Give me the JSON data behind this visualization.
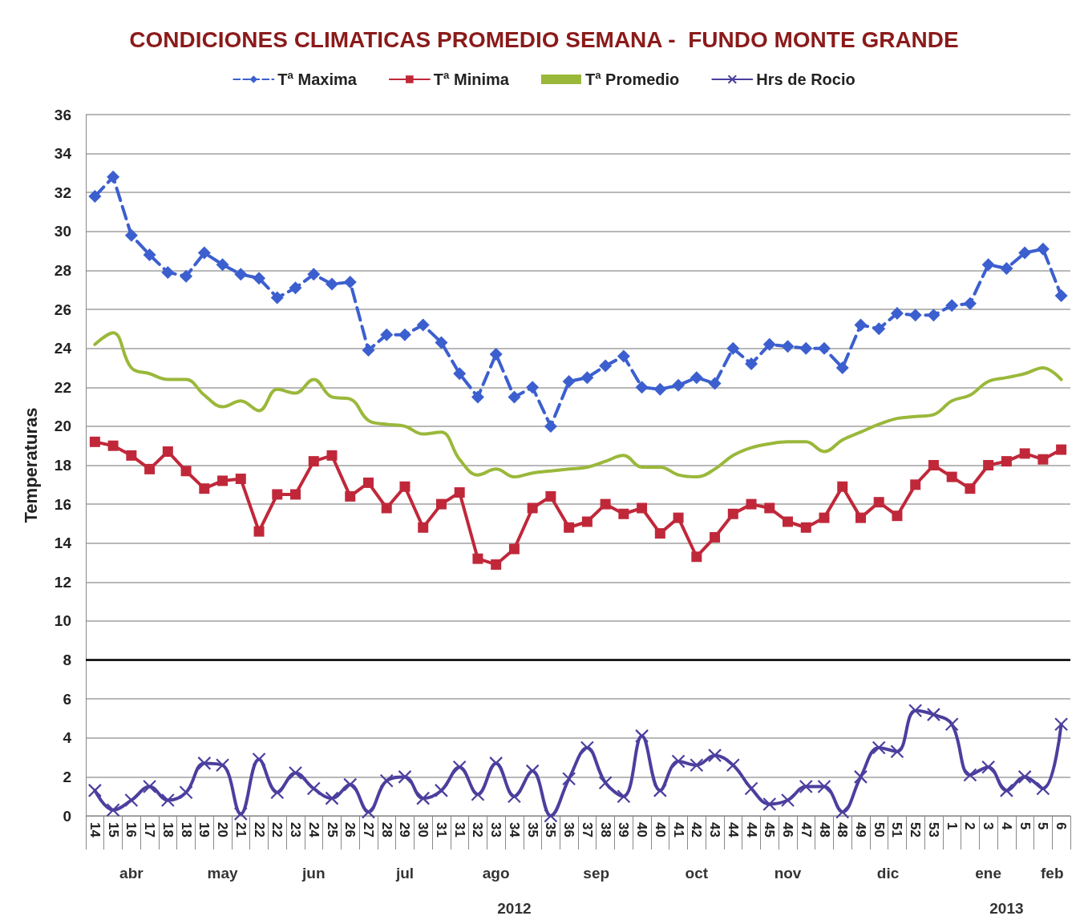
{
  "chart_data": {
    "type": "line",
    "title": "CONDICIONES CLIMATICAS PROMEDIO SEMANA -  FUNDO MONTE GRANDE",
    "ylabel": "Temperaturas",
    "categories": [
      "14",
      "15",
      "16",
      "17",
      "18",
      "18",
      "19",
      "20",
      "21",
      "22",
      "22",
      "23",
      "24",
      "25",
      "26",
      "27",
      "28",
      "29",
      "30",
      "31",
      "31",
      "32",
      "33",
      "34",
      "35",
      "35",
      "36",
      "37",
      "38",
      "39",
      "40",
      "40",
      "41",
      "42",
      "43",
      "44",
      "44",
      "45",
      "46",
      "47",
      "48",
      "48",
      "49",
      "50",
      "51",
      "52",
      "53",
      "1",
      "2",
      "3",
      "4",
      "5",
      "5",
      "6"
    ],
    "series": [
      {
        "name": "Tª Maxima",
        "color": "#3c5fcf",
        "marker": "diamond",
        "line_style": "dashed",
        "values": [
          31.8,
          32.8,
          29.8,
          28.8,
          27.9,
          27.7,
          28.9,
          28.3,
          27.8,
          27.6,
          26.6,
          27.1,
          27.8,
          27.3,
          27.4,
          23.9,
          24.7,
          24.7,
          25.2,
          24.3,
          22.7,
          21.5,
          23.7,
          21.5,
          22.0,
          20.0,
          22.3,
          22.5,
          23.1,
          23.6,
          22.0,
          21.9,
          22.1,
          22.5,
          22.2,
          24.0,
          23.2,
          24.2,
          24.1,
          24.0,
          24.0,
          23.0,
          25.2,
          25.0,
          25.8,
          25.7,
          25.7,
          26.2,
          26.3,
          28.3,
          28.1,
          28.9,
          29.1,
          26.7
        ]
      },
      {
        "name": "Tª Minima",
        "color": "#c0283a",
        "marker": "square",
        "line_style": "solid",
        "values": [
          19.2,
          19.0,
          18.5,
          17.8,
          18.7,
          17.7,
          16.8,
          17.2,
          17.3,
          14.6,
          16.5,
          16.5,
          18.2,
          18.5,
          16.4,
          17.1,
          15.8,
          16.9,
          14.8,
          16.0,
          16.6,
          13.2,
          12.9,
          13.7,
          15.8,
          16.4,
          14.8,
          15.1,
          16.0,
          15.5,
          15.8,
          14.5,
          15.3,
          13.3,
          14.3,
          15.5,
          16.0,
          15.8,
          15.1,
          14.8,
          15.3,
          16.9,
          15.3,
          16.1,
          15.4,
          17.0,
          18.0,
          17.4,
          16.8,
          18.0,
          18.2,
          18.6,
          18.3,
          18.8
        ]
      },
      {
        "name": "Tª Promedio",
        "color": "#9ab83a",
        "marker": "none",
        "line_style": "solid",
        "values": [
          24.2,
          24.8,
          23.0,
          22.7,
          22.4,
          22.4,
          21.6,
          21.0,
          21.3,
          20.8,
          21.9,
          21.7,
          22.4,
          21.5,
          21.4,
          20.3,
          20.1,
          20.0,
          19.6,
          19.7,
          18.3,
          17.5,
          17.8,
          17.4,
          17.6,
          17.7,
          17.8,
          17.9,
          18.2,
          18.5,
          17.9,
          17.9,
          17.5,
          17.4,
          17.8,
          18.5,
          18.9,
          19.1,
          19.2,
          19.2,
          18.7,
          19.3,
          19.7,
          20.1,
          20.4,
          20.5,
          20.6,
          21.3,
          21.6,
          22.3,
          22.5,
          22.7,
          23.0,
          22.4
        ]
      },
      {
        "name": "Hrs de Rocio",
        "color": "#4b3f9e",
        "marker": "cross",
        "line_style": "solid",
        "values": [
          1.3,
          0.3,
          0.8,
          1.5,
          0.8,
          1.2,
          2.7,
          2.6,
          0.1,
          2.9,
          1.2,
          2.2,
          1.4,
          0.9,
          1.6,
          0.2,
          1.8,
          2.0,
          0.9,
          1.3,
          2.5,
          1.1,
          2.7,
          1.0,
          2.3,
          0.0,
          1.9,
          3.5,
          1.7,
          1.0,
          4.1,
          1.3,
          2.8,
          2.6,
          3.1,
          2.6,
          1.4,
          0.6,
          0.8,
          1.5,
          1.5,
          0.2,
          2.0,
          3.5,
          3.3,
          5.4,
          5.2,
          4.7,
          2.1,
          2.5,
          1.3,
          2.0,
          1.4,
          4.7
        ]
      }
    ],
    "ylim": [
      0,
      36
    ],
    "yticks": [
      0,
      2,
      4,
      6,
      8,
      10,
      12,
      14,
      16,
      18,
      20,
      22,
      24,
      26,
      28,
      30,
      32,
      34,
      36
    ],
    "grid": "y",
    "legend": "top",
    "ref_lines": [
      {
        "axis": "y",
        "value": 8,
        "color": "#000000"
      }
    ],
    "annotations": [
      "abr",
      "may",
      "jun",
      "jul",
      "ago",
      "sep",
      "oct",
      "nov",
      "dic",
      "ene",
      "feb",
      "2012",
      "2013"
    ]
  }
}
